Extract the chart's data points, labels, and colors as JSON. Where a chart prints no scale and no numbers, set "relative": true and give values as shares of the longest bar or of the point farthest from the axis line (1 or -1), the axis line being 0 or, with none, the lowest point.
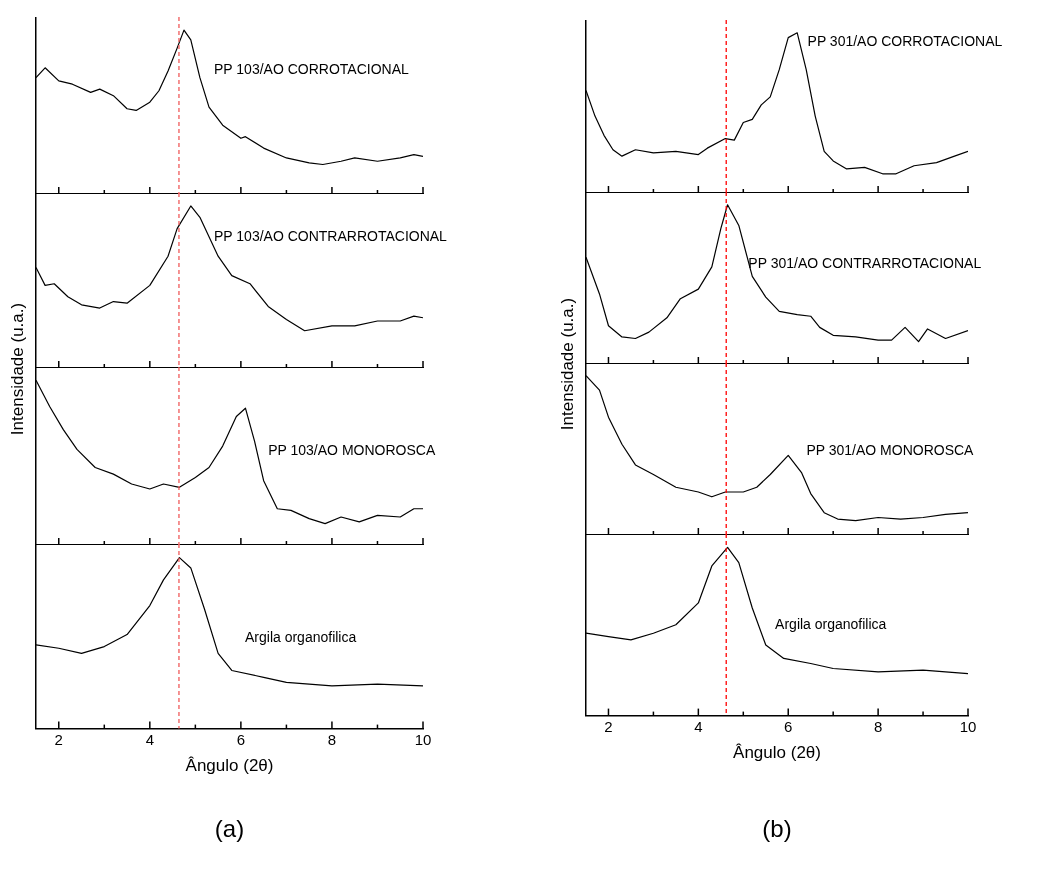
{
  "chart_data": [
    {
      "type": "line",
      "relative": true,
      "xlim": [
        1.5,
        10
      ],
      "xticks": [
        2,
        {
          "value": 3,
          "label": null
        },
        4,
        {
          "value": 5,
          "label": null
        },
        6,
        {
          "value": 7,
          "label": null
        },
        8,
        {
          "value": 9,
          "label": null
        },
        10
      ],
      "tick_labels": false,
      "ref_lines": [
        {
          "axis": "x",
          "value": 4.64,
          "color": "#f05a5a",
          "line_style": "dashed"
        }
      ],
      "series": [
        {
          "name": "PP 103/AO CORROTACIONAL",
          "color": "#000000",
          "x": [
            1.5,
            1.7,
            2.0,
            2.3,
            2.7,
            2.9,
            3.2,
            3.5,
            3.7,
            4.0,
            4.2,
            4.4,
            4.6,
            4.75,
            4.9,
            5.1,
            5.3,
            5.6,
            6.0,
            6.1,
            6.5,
            7.0,
            7.5,
            7.8,
            8.2,
            8.5,
            9.0,
            9.5,
            9.8,
            10
          ],
          "values": [
            0.71,
            0.77,
            0.69,
            0.67,
            0.62,
            0.64,
            0.6,
            0.52,
            0.51,
            0.56,
            0.63,
            0.75,
            0.89,
            1.0,
            0.94,
            0.71,
            0.53,
            0.42,
            0.34,
            0.35,
            0.28,
            0.22,
            0.19,
            0.18,
            0.2,
            0.22,
            0.2,
            0.22,
            0.24,
            0.23
          ]
        }
      ]
    },
    {
      "type": "line",
      "relative": true,
      "xlim": [
        1.5,
        10
      ],
      "xticks": [
        2,
        {
          "value": 3,
          "label": null
        },
        4,
        {
          "value": 5,
          "label": null
        },
        6,
        {
          "value": 7,
          "label": null
        },
        8,
        {
          "value": 9,
          "label": null
        },
        10
      ],
      "tick_labels": false,
      "ylabel": "Intensidade (u.a.)",
      "ref_lines": [
        {
          "axis": "x",
          "value": 4.64,
          "color": "#f05a5a",
          "line_style": "dashed"
        }
      ],
      "series": [
        {
          "name": "PP 103/AO CONTRARROTACIONAL",
          "color": "#000000",
          "x": [
            1.5,
            1.7,
            1.9,
            2.2,
            2.5,
            2.9,
            3.2,
            3.5,
            4.0,
            4.4,
            4.6,
            4.9,
            5.1,
            5.5,
            5.8,
            6.2,
            6.6,
            7.0,
            7.4,
            8.0,
            8.5,
            9.0,
            9.5,
            9.8,
            10
          ],
          "values": [
            0.62,
            0.51,
            0.52,
            0.44,
            0.39,
            0.37,
            0.41,
            0.4,
            0.51,
            0.69,
            0.86,
            1.0,
            0.93,
            0.69,
            0.57,
            0.52,
            0.38,
            0.3,
            0.23,
            0.26,
            0.26,
            0.29,
            0.29,
            0.32,
            0.31
          ]
        }
      ]
    },
    {
      "type": "line",
      "relative": true,
      "xlim": [
        1.5,
        10
      ],
      "xticks": [
        2,
        {
          "value": 3,
          "label": null
        },
        4,
        {
          "value": 5,
          "label": null
        },
        6,
        {
          "value": 7,
          "label": null
        },
        8,
        {
          "value": 9,
          "label": null
        },
        10
      ],
      "tick_labels": false,
      "ref_lines": [
        {
          "axis": "x",
          "value": 4.64,
          "color": "#f05a5a",
          "line_style": "dashed"
        }
      ],
      "series": [
        {
          "name": "PP 103/AO MONOROSCA",
          "color": "#000000",
          "x": [
            1.5,
            1.8,
            2.1,
            2.4,
            2.8,
            3.2,
            3.6,
            4.0,
            4.3,
            4.65,
            5.0,
            5.3,
            5.6,
            5.9,
            6.1,
            6.3,
            6.5,
            6.8,
            7.1,
            7.5,
            7.85,
            8.2,
            8.6,
            9.0,
            9.5,
            9.8,
            10
          ],
          "values": [
            1.0,
            0.84,
            0.7,
            0.58,
            0.47,
            0.43,
            0.37,
            0.34,
            0.37,
            0.35,
            0.41,
            0.47,
            0.6,
            0.78,
            0.83,
            0.63,
            0.39,
            0.22,
            0.21,
            0.16,
            0.13,
            0.17,
            0.14,
            0.18,
            0.17,
            0.22,
            0.22
          ]
        }
      ]
    },
    {
      "type": "line",
      "relative": true,
      "xlim": [
        1.5,
        10
      ],
      "xticks": [
        2,
        {
          "value": 3,
          "label": null
        },
        4,
        {
          "value": 5,
          "label": null
        },
        6,
        {
          "value": 7,
          "label": null
        },
        8,
        {
          "value": 9,
          "label": null
        },
        10
      ],
      "tick_labels": "x",
      "xlabel": "Ângulo (2θ)",
      "annotations": [
        "(a)"
      ],
      "ref_lines": [
        {
          "axis": "x",
          "value": 4.64,
          "color": "#f05a5a",
          "line_style": "dashed"
        }
      ],
      "series": [
        {
          "name": "Argila organofilica",
          "color": "#000000",
          "x": [
            1.5,
            2.0,
            2.5,
            3.0,
            3.5,
            4.0,
            4.3,
            4.65,
            4.9,
            5.2,
            5.5,
            5.8,
            6.5,
            7.0,
            8.0,
            9.0,
            10
          ],
          "values": [
            0.49,
            0.47,
            0.44,
            0.48,
            0.55,
            0.72,
            0.87,
            1.0,
            0.94,
            0.7,
            0.44,
            0.34,
            0.3,
            0.27,
            0.25,
            0.26,
            0.25
          ]
        }
      ]
    },
    {
      "type": "line",
      "relative": true,
      "xlim": [
        1.5,
        10
      ],
      "xticks": [
        2,
        {
          "value": 3,
          "label": null
        },
        4,
        {
          "value": 5,
          "label": null
        },
        6,
        {
          "value": 7,
          "label": null
        },
        8,
        {
          "value": 9,
          "label": null
        },
        10
      ],
      "tick_labels": false,
      "ref_lines": [
        {
          "axis": "x",
          "value": 4.62,
          "color": "#ff0000",
          "line_style": "dashed"
        }
      ],
      "series": [
        {
          "name": "PP 301/AO CORROTACIONAL",
          "color": "#000000",
          "x": [
            1.5,
            1.7,
            1.9,
            2.1,
            2.3,
            2.6,
            3.0,
            3.5,
            4.0,
            4.2,
            4.6,
            4.8,
            5.0,
            5.2,
            5.4,
            5.6,
            5.8,
            6.0,
            6.2,
            6.4,
            6.6,
            6.8,
            7.0,
            7.3,
            7.7,
            8.1,
            8.4,
            8.8,
            9.3,
            9.7,
            10
          ],
          "values": [
            0.64,
            0.48,
            0.36,
            0.27,
            0.23,
            0.27,
            0.25,
            0.26,
            0.24,
            0.28,
            0.34,
            0.33,
            0.44,
            0.46,
            0.55,
            0.6,
            0.77,
            0.97,
            1.0,
            0.77,
            0.48,
            0.26,
            0.2,
            0.15,
            0.16,
            0.12,
            0.12,
            0.17,
            0.19,
            0.23,
            0.26
          ]
        }
      ]
    },
    {
      "type": "line",
      "relative": true,
      "xlim": [
        1.5,
        10
      ],
      "xticks": [
        2,
        {
          "value": 3,
          "label": null
        },
        4,
        {
          "value": 5,
          "label": null
        },
        6,
        {
          "value": 7,
          "label": null
        },
        8,
        {
          "value": 9,
          "label": null
        },
        10
      ],
      "tick_labels": false,
      "ylabel": "Intensidade (u.a.)",
      "ref_lines": [
        {
          "axis": "x",
          "value": 4.62,
          "color": "#ff0000",
          "line_style": "dashed"
        }
      ],
      "series": [
        {
          "name": "PP 301/AO CONTRARROTACIONAL",
          "color": "#000000",
          "x": [
            1.5,
            1.8,
            2.0,
            2.3,
            2.6,
            2.9,
            3.3,
            3.6,
            4.0,
            4.3,
            4.5,
            4.65,
            4.9,
            5.2,
            5.5,
            5.8,
            6.2,
            6.5,
            6.7,
            7.0,
            7.5,
            8.0,
            8.3,
            8.6,
            8.9,
            9.1,
            9.5,
            10
          ],
          "values": [
            0.67,
            0.44,
            0.24,
            0.17,
            0.16,
            0.2,
            0.29,
            0.41,
            0.47,
            0.61,
            0.85,
            1.0,
            0.87,
            0.55,
            0.42,
            0.33,
            0.31,
            0.3,
            0.23,
            0.18,
            0.17,
            0.15,
            0.15,
            0.23,
            0.14,
            0.22,
            0.16,
            0.21
          ]
        }
      ]
    },
    {
      "type": "line",
      "relative": true,
      "xlim": [
        1.5,
        10
      ],
      "xticks": [
        2,
        {
          "value": 3,
          "label": null
        },
        4,
        {
          "value": 5,
          "label": null
        },
        6,
        {
          "value": 7,
          "label": null
        },
        8,
        {
          "value": 9,
          "label": null
        },
        10
      ],
      "tick_labels": false,
      "ref_lines": [
        {
          "axis": "x",
          "value": 4.62,
          "color": "#ff0000",
          "line_style": "dashed"
        }
      ],
      "series": [
        {
          "name": "PP 301/AO MONOROSCA",
          "color": "#000000",
          "x": [
            1.5,
            1.8,
            2.0,
            2.3,
            2.6,
            3.0,
            3.5,
            4.0,
            4.3,
            4.6,
            5.0,
            5.3,
            5.6,
            6.0,
            6.3,
            6.5,
            6.8,
            7.1,
            7.5,
            8.0,
            8.5,
            9.0,
            9.5,
            10
          ],
          "values": [
            1.0,
            0.91,
            0.74,
            0.57,
            0.44,
            0.38,
            0.3,
            0.27,
            0.24,
            0.27,
            0.27,
            0.3,
            0.38,
            0.5,
            0.39,
            0.26,
            0.14,
            0.1,
            0.09,
            0.11,
            0.1,
            0.11,
            0.13,
            0.14
          ]
        }
      ]
    },
    {
      "type": "line",
      "relative": true,
      "xlim": [
        1.5,
        10
      ],
      "xticks": [
        2,
        {
          "value": 3,
          "label": null
        },
        4,
        {
          "value": 5,
          "label": null
        },
        6,
        {
          "value": 7,
          "label": null
        },
        8,
        {
          "value": 9,
          "label": null
        },
        10
      ],
      "tick_labels": "x",
      "xlabel": "Ângulo (2θ)",
      "annotations": [
        "(b)"
      ],
      "ref_lines": [
        {
          "axis": "x",
          "value": 4.62,
          "color": "#ff0000",
          "line_style": "dashed"
        }
      ],
      "series": [
        {
          "name": "Argila organofilica",
          "color": "#000000",
          "x": [
            1.5,
            2.0,
            2.5,
            3.0,
            3.5,
            4.0,
            4.3,
            4.65,
            4.9,
            5.2,
            5.5,
            5.9,
            6.5,
            7.0,
            8.0,
            9.0,
            10
          ],
          "values": [
            0.49,
            0.47,
            0.45,
            0.49,
            0.54,
            0.67,
            0.89,
            1.0,
            0.91,
            0.64,
            0.42,
            0.34,
            0.31,
            0.28,
            0.26,
            0.27,
            0.25
          ]
        }
      ]
    }
  ]
}
